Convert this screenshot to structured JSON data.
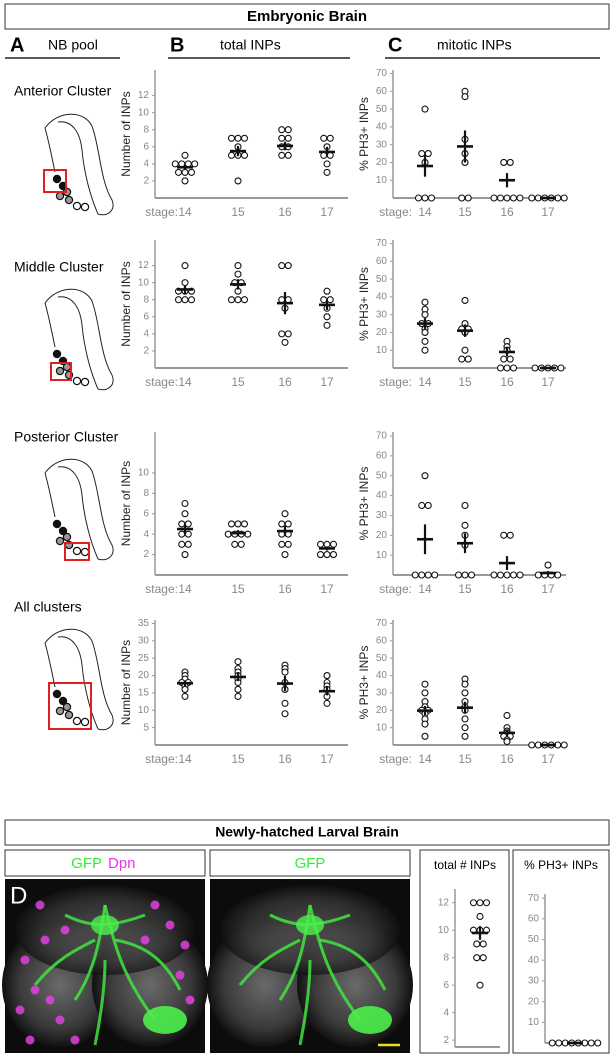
{
  "title": "Embryonic Brain",
  "panels": [
    {
      "letter": "A",
      "label": "NB pool"
    },
    {
      "letter": "B",
      "label": "total INPs"
    },
    {
      "letter": "C",
      "label": "mitotic INPs"
    }
  ],
  "clusters": [
    "Anterior Cluster",
    "Middle Cluster",
    "Posterior Cluster",
    "All clusters"
  ],
  "larval": {
    "title": "Newly-hatched Larval Brain",
    "letter": "D",
    "image_labels": [
      [
        {
          "text": "GFP",
          "color": "#33ee33"
        },
        {
          "text": "Dpn",
          "color": "#ee33ee"
        }
      ],
      [
        {
          "text": "GFP",
          "color": "#33ee33"
        }
      ]
    ]
  },
  "chart_data": [
    {
      "type": "dotplot",
      "ylabel": "Number of INPs",
      "xlabel": "stage:",
      "categories": [
        14,
        15,
        16,
        17
      ],
      "points": [
        [
          5,
          4,
          4,
          4,
          3,
          3,
          3,
          2,
          4
        ],
        [
          7,
          7,
          7,
          6,
          5,
          5,
          5,
          2
        ],
        [
          8,
          8,
          7,
          7,
          6,
          6,
          5,
          5
        ],
        [
          7,
          7,
          6,
          5,
          5,
          4,
          3
        ]
      ],
      "mean": [
        3.6,
        5.5,
        6.1,
        5.4
      ],
      "sem": [
        0.3,
        0.6,
        0.5,
        0.6
      ],
      "ylim": [
        0,
        15
      ],
      "yticks": [
        2,
        4,
        6,
        8,
        10,
        12
      ]
    },
    {
      "type": "dotplot",
      "ylabel": "% PH3+ INPs",
      "xlabel": "stage:",
      "categories": [
        14,
        15,
        16,
        17
      ],
      "points": [
        [
          50,
          25,
          25,
          20,
          0,
          0,
          0
        ],
        [
          60,
          57,
          33,
          25,
          20,
          0,
          0
        ],
        [
          20,
          20,
          0,
          0,
          0,
          0,
          0
        ],
        [
          0,
          0,
          0,
          0,
          0,
          0
        ]
      ],
      "mean": [
        18,
        29,
        10,
        0
      ],
      "sem": [
        6,
        9,
        4,
        0
      ],
      "ylim": [
        0,
        72
      ],
      "yticks": [
        10,
        20,
        30,
        40,
        50,
        60,
        70
      ]
    },
    {
      "type": "dotplot",
      "ylabel": "Number of INPs",
      "xlabel": "stage:",
      "categories": [
        14,
        15,
        16,
        17
      ],
      "points": [
        [
          12,
          10,
          9,
          9,
          9,
          8,
          8,
          8
        ],
        [
          12,
          11,
          10,
          10,
          9,
          8,
          8,
          8
        ],
        [
          12,
          12,
          8,
          8,
          7,
          4,
          4,
          3
        ],
        [
          9,
          8,
          8,
          7,
          6,
          5
        ]
      ],
      "mean": [
        9.2,
        9.8,
        7.6,
        7.4
      ],
      "sem": [
        0.5,
        0.6,
        1.3,
        0.6
      ],
      "ylim": [
        0,
        15
      ],
      "yticks": [
        2,
        4,
        6,
        8,
        10,
        12
      ]
    },
    {
      "type": "dotplot",
      "ylabel": "% PH3+ INPs",
      "xlabel": "stage:",
      "categories": [
        14,
        15,
        16,
        17
      ],
      "points": [
        [
          37,
          33,
          30,
          25,
          25,
          22,
          20,
          15,
          10
        ],
        [
          38,
          25,
          22,
          22,
          20,
          10,
          5,
          5
        ],
        [
          15,
          12,
          10,
          5,
          5,
          0,
          0,
          0
        ],
        [
          0,
          0,
          0,
          0,
          0
        ]
      ],
      "mean": [
        25,
        21,
        9,
        0
      ],
      "sem": [
        3,
        3.5,
        2.5,
        0
      ],
      "ylim": [
        0,
        72
      ],
      "yticks": [
        10,
        20,
        30,
        40,
        50,
        60,
        70
      ]
    },
    {
      "type": "dotplot",
      "ylabel": "Number of INPs",
      "xlabel": "stage:",
      "categories": [
        14,
        15,
        16,
        17
      ],
      "points": [
        [
          7,
          6,
          5,
          5,
          4,
          4,
          3,
          3,
          2
        ],
        [
          5,
          5,
          5,
          4,
          4,
          4,
          4,
          3,
          3
        ],
        [
          6,
          5,
          5,
          4,
          4,
          3,
          3,
          2
        ],
        [
          3,
          3,
          3,
          2,
          2,
          2
        ]
      ],
      "mean": [
        4.5,
        4.1,
        4.3,
        2.6
      ],
      "sem": [
        0.5,
        0.3,
        0.5,
        0.2
      ],
      "ylim": [
        0,
        14
      ],
      "yticks": [
        2,
        4,
        6,
        8,
        10
      ]
    },
    {
      "type": "dotplot",
      "ylabel": "% PH3+ INPs",
      "xlabel": "stage:",
      "categories": [
        14,
        15,
        16,
        17
      ],
      "points": [
        [
          50,
          35,
          35,
          0,
          0,
          0,
          0
        ],
        [
          35,
          25,
          20,
          15,
          0,
          0,
          0
        ],
        [
          20,
          20,
          0,
          0,
          0,
          0,
          0
        ],
        [
          5,
          0,
          0,
          0,
          0
        ]
      ],
      "mean": [
        18,
        16,
        6,
        1
      ],
      "sem": [
        7.5,
        5,
        3.5,
        1
      ],
      "ylim": [
        0,
        72
      ],
      "yticks": [
        10,
        20,
        30,
        40,
        50,
        60,
        70
      ]
    },
    {
      "type": "dotplot",
      "ylabel": "Number of INPs",
      "xlabel": "stage:",
      "categories": [
        14,
        15,
        16,
        17
      ],
      "points": [
        [
          21,
          20,
          19,
          18,
          18,
          17,
          16,
          14
        ],
        [
          24,
          22,
          21,
          20,
          19,
          18,
          16,
          14
        ],
        [
          23,
          22,
          21,
          18,
          16,
          12,
          9
        ],
        [
          20,
          18,
          17,
          16,
          14,
          12
        ]
      ],
      "mean": [
        17.8,
        19.6,
        17.7,
        15.5
      ],
      "sem": [
        0.8,
        1.2,
        2.2,
        1.2
      ],
      "ylim": [
        0,
        36
      ],
      "yticks": [
        5,
        10,
        15,
        20,
        25,
        30,
        35
      ]
    },
    {
      "type": "dotplot",
      "ylabel": "% PH3+ INPs",
      "xlabel": "stage:",
      "categories": [
        14,
        15,
        16,
        17
      ],
      "points": [
        [
          35,
          30,
          25,
          22,
          20,
          20,
          18,
          15,
          12,
          5
        ],
        [
          38,
          35,
          30,
          25,
          22,
          20,
          15,
          10,
          5
        ],
        [
          17,
          10,
          8,
          7,
          5,
          5,
          3,
          2
        ],
        [
          0,
          0,
          0,
          0,
          0,
          0
        ]
      ],
      "mean": [
        19.8,
        21.5,
        7,
        0
      ],
      "sem": [
        2.7,
        3.4,
        1.7,
        0
      ],
      "ylim": [
        0,
        72
      ],
      "yticks": [
        10,
        20,
        30,
        40,
        50,
        60,
        70
      ]
    },
    {
      "type": "dotplot",
      "title": "total # INPs",
      "points": [
        [
          12,
          12,
          12,
          11,
          10,
          10,
          10,
          9,
          9,
          8,
          8,
          6
        ]
      ],
      "mean": [
        9.8
      ],
      "sem": [
        0.5
      ],
      "ylim": [
        1.5,
        13
      ],
      "yticks": [
        2,
        4,
        6,
        8,
        10,
        12
      ]
    },
    {
      "type": "dotplot",
      "title": "% PH3+ INPs",
      "points": [
        [
          0,
          0,
          0,
          0,
          0,
          0,
          0,
          0
        ]
      ],
      "mean": [
        0
      ],
      "sem": [
        0
      ],
      "ylim": [
        0,
        72
      ],
      "yticks": [
        10,
        20,
        30,
        40,
        50,
        60,
        70
      ]
    }
  ]
}
